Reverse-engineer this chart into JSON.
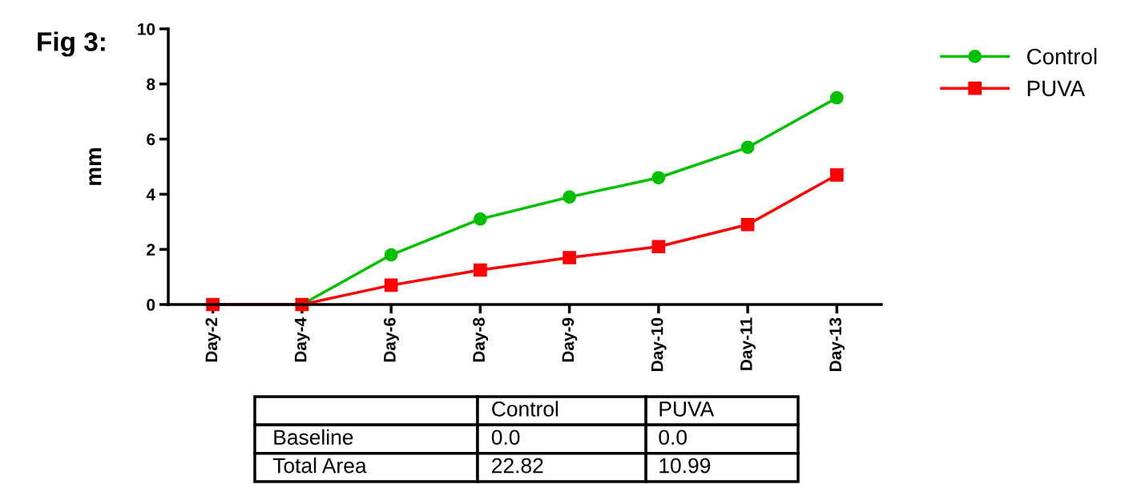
{
  "chart_data": {
    "type": "line",
    "title": "Fig 3:",
    "ylabel": "mm",
    "categories": [
      "Day-2",
      "Day-4",
      "Day-6",
      "Day-8",
      "Day-9",
      "Day-10",
      "Day-11",
      "Day-13"
    ],
    "series": [
      {
        "name": "Control",
        "color": "#00c000",
        "marker": "circle",
        "values": [
          null,
          0,
          1.8,
          3.1,
          3.9,
          4.6,
          5.7,
          7.5
        ]
      },
      {
        "name": "PUVA",
        "color": "#ff0000",
        "marker": "square",
        "values": [
          0,
          0,
          0.7,
          1.25,
          1.7,
          2.1,
          2.9,
          4.7
        ]
      }
    ],
    "ylim": [
      0,
      10
    ],
    "yticks": [
      0,
      2,
      4,
      6,
      8,
      10
    ],
    "grid": false,
    "legend": "top right",
    "line_style": "solid",
    "annotations": [
      "Baseline",
      "0.0",
      "0.0",
      "Total Area",
      "22.82",
      "10.99"
    ]
  }
}
